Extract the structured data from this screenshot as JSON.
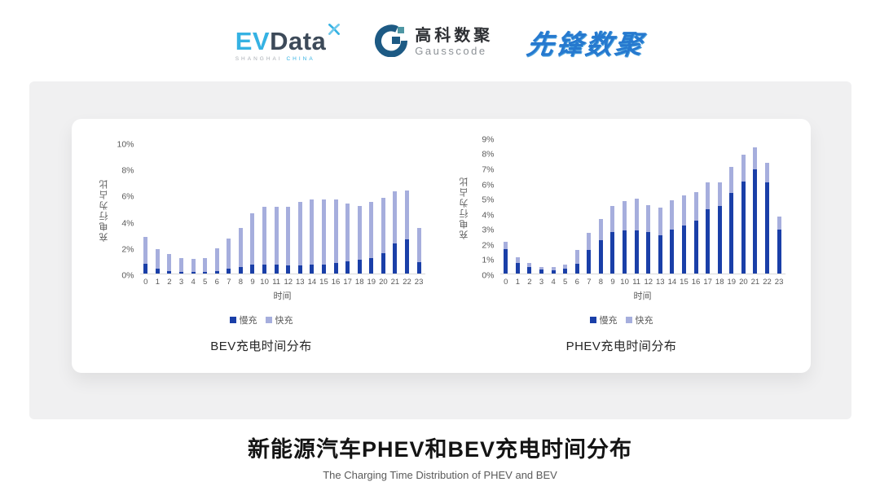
{
  "header": {
    "evdata_logo": {
      "ev": "EV",
      "data": "Data",
      "sub1": "SHANGHAI",
      "sub2": "CHINA"
    },
    "gausscode_logo": {
      "cn": "高科数聚",
      "en": "Gausscode"
    },
    "pioneer_logo": {
      "text": "先锋数聚"
    }
  },
  "colors": {
    "slow_charge": "#1a3fa8",
    "fast_charge": "#a6aedd",
    "axis_text": "#595959",
    "axis_line": "#d9d9d9",
    "evdata_blue": "#35b2e3",
    "gausscode_blue": "#1d5a84",
    "pioneer_blue": "#2679cf"
  },
  "chart_data": [
    {
      "type": "bar",
      "stacked": true,
      "title": "BEV充电时间分布",
      "xlabel": "时间",
      "ylabel": "充电行为占比",
      "ylim": [
        0,
        10
      ],
      "ytick_step": 2,
      "ytick_suffix": "%",
      "grid": false,
      "legend_position": "bottom",
      "categories": [
        "0",
        "1",
        "2",
        "3",
        "4",
        "5",
        "6",
        "7",
        "8",
        "9",
        "10",
        "11",
        "12",
        "13",
        "14",
        "15",
        "16",
        "17",
        "18",
        "19",
        "20",
        "21",
        "22",
        "23"
      ],
      "series": [
        {
          "name": "慢充",
          "color": "#1a3fa8",
          "values": [
            0.75,
            0.4,
            0.2,
            0.12,
            0.12,
            0.12,
            0.17,
            0.35,
            0.5,
            0.7,
            0.7,
            0.7,
            0.6,
            0.65,
            0.7,
            0.7,
            0.8,
            0.95,
            1.05,
            1.2,
            1.55,
            2.3,
            2.6,
            0.9
          ]
        },
        {
          "name": "快充",
          "color": "#a6aedd",
          "values": [
            2.05,
            1.5,
            1.3,
            1.05,
            1.0,
            1.05,
            1.75,
            2.35,
            3.0,
            3.9,
            4.4,
            4.4,
            4.5,
            4.85,
            5.0,
            5.0,
            4.9,
            4.45,
            4.15,
            4.3,
            4.25,
            4.0,
            3.8,
            2.6
          ]
        }
      ]
    },
    {
      "type": "bar",
      "stacked": true,
      "title": "PHEV充电时间分布",
      "xlabel": "时间",
      "ylabel": "充电行为占比",
      "ylim": [
        0,
        9
      ],
      "ytick_step": 1,
      "ytick_suffix": "%",
      "grid": false,
      "legend_position": "bottom",
      "categories": [
        "0",
        "1",
        "2",
        "3",
        "4",
        "5",
        "6",
        "7",
        "8",
        "9",
        "10",
        "11",
        "12",
        "13",
        "14",
        "15",
        "16",
        "17",
        "18",
        "19",
        "20",
        "21",
        "22",
        "23"
      ],
      "series": [
        {
          "name": "慢充",
          "color": "#1a3fa8",
          "values": [
            1.65,
            0.7,
            0.45,
            0.25,
            0.22,
            0.3,
            0.65,
            1.55,
            2.2,
            2.75,
            2.9,
            2.9,
            2.75,
            2.55,
            2.95,
            3.2,
            3.5,
            4.3,
            4.5,
            5.35,
            6.15,
            6.95,
            6.1,
            2.95
          ]
        },
        {
          "name": "快充",
          "color": "#a6aedd",
          "values": [
            0.45,
            0.4,
            0.25,
            0.2,
            0.23,
            0.3,
            0.9,
            1.15,
            1.45,
            1.75,
            1.9,
            2.1,
            1.8,
            1.85,
            1.95,
            2.0,
            1.95,
            1.8,
            1.6,
            1.75,
            1.75,
            1.45,
            1.3,
            0.85
          ]
        }
      ]
    }
  ],
  "footer": {
    "title": "新能源汽车PHEV和BEV充电时间分布",
    "subtitle": "The Charging Time Distribution of PHEV and BEV"
  }
}
